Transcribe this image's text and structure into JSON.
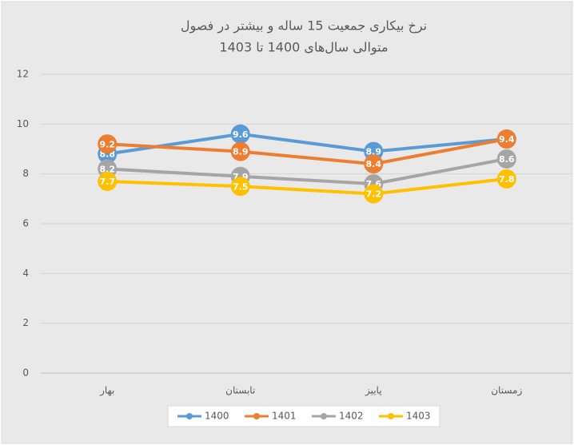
{
  "chart_data": {
    "type": "line",
    "title": [
      "نرخ بیکاری جمعیت 15 ساله و بیشتر در فصول",
      "متوالی سال‌های 1400 تا 1403"
    ],
    "categories": [
      "بهار",
      "تابستان",
      "پاییز",
      "زمستان"
    ],
    "series": [
      {
        "name": "1400",
        "color": "#5b9bd5",
        "values": [
          8.8,
          9.6,
          8.9,
          9.4
        ]
      },
      {
        "name": "1401",
        "color": "#ed7d31",
        "values": [
          9.2,
          8.9,
          8.4,
          9.4
        ]
      },
      {
        "name": "1402",
        "color": "#a5a5a5",
        "values": [
          8.2,
          7.9,
          7.6,
          8.6
        ]
      },
      {
        "name": "1403",
        "color": "#ffc000",
        "values": [
          7.7,
          7.5,
          7.2,
          7.8
        ]
      }
    ],
    "ylim": [
      0,
      12
    ],
    "yticks": [
      0,
      2,
      4,
      6,
      8,
      10,
      12
    ],
    "grid": true,
    "legend": "bottom"
  }
}
